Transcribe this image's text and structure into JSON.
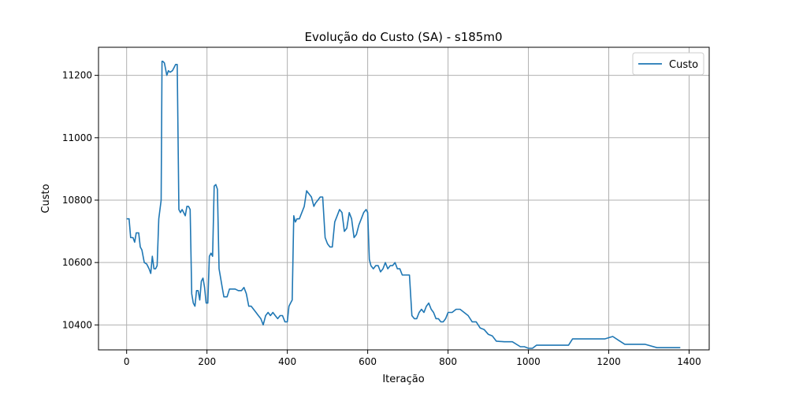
{
  "chart_data": {
    "type": "line",
    "title": "Evolução do Custo (SA) - s185m0",
    "xlabel": "Iteração",
    "ylabel": "Custo",
    "xlim": [
      -70,
      1450
    ],
    "ylim": [
      10320,
      11290
    ],
    "xticks": [
      0,
      200,
      400,
      600,
      800,
      1000,
      1200,
      1400
    ],
    "yticks": [
      10400,
      10600,
      10800,
      11000,
      11200
    ],
    "grid": true,
    "legend_position": "top-right",
    "series": [
      {
        "name": "Custo",
        "color": "#1f77b4",
        "x": [
          0,
          6,
          10,
          16,
          20,
          24,
          30,
          34,
          38,
          44,
          50,
          56,
          60,
          64,
          68,
          72,
          76,
          80,
          84,
          86,
          88,
          90,
          94,
          100,
          104,
          108,
          114,
          118,
          122,
          126,
          130,
          134,
          138,
          142,
          146,
          150,
          154,
          158,
          162,
          166,
          170,
          174,
          178,
          182,
          186,
          190,
          194,
          198,
          202,
          206,
          210,
          214,
          218,
          222,
          226,
          230,
          234,
          238,
          242,
          246,
          250,
          256,
          262,
          270,
          278,
          286,
          292,
          298,
          304,
          310,
          316,
          322,
          328,
          334,
          340,
          346,
          352,
          358,
          364,
          370,
          376,
          382,
          388,
          394,
          400,
          404,
          408,
          412,
          416,
          420,
          424,
          430,
          436,
          442,
          448,
          454,
          460,
          466,
          470,
          476,
          482,
          488,
          494,
          500,
          506,
          512,
          518,
          524,
          530,
          536,
          542,
          548,
          554,
          560,
          566,
          572,
          578,
          584,
          590,
          596,
          600,
          604,
          608,
          614,
          620,
          626,
          632,
          638,
          644,
          650,
          656,
          662,
          668,
          674,
          680,
          686,
          692,
          698,
          704,
          710,
          716,
          722,
          728,
          734,
          740,
          746,
          752,
          758,
          764,
          770,
          776,
          782,
          788,
          794,
          800,
          810,
          820,
          830,
          840,
          850,
          860,
          870,
          880,
          890,
          900,
          910,
          920,
          940,
          960,
          980,
          990,
          1000,
          1010,
          1020,
          1040,
          1060,
          1080,
          1100,
          1110,
          1130,
          1160,
          1190,
          1210,
          1225,
          1240,
          1260,
          1290,
          1320,
          1350,
          1378
        ],
        "y": [
          10740,
          10740,
          10680,
          10680,
          10665,
          10695,
          10695,
          10650,
          10640,
          10600,
          10595,
          10580,
          10565,
          10620,
          10580,
          10580,
          10590,
          10740,
          10780,
          10800,
          11245,
          11245,
          11240,
          11200,
          11215,
          11210,
          11215,
          11225,
          11235,
          11235,
          10770,
          10760,
          10770,
          10760,
          10750,
          10780,
          10780,
          10770,
          10500,
          10470,
          10460,
          10510,
          10510,
          10480,
          10540,
          10550,
          10520,
          10470,
          10470,
          10620,
          10630,
          10620,
          10845,
          10850,
          10835,
          10580,
          10550,
          10520,
          10490,
          10490,
          10490,
          10515,
          10515,
          10515,
          10510,
          10510,
          10520,
          10500,
          10460,
          10460,
          10450,
          10440,
          10430,
          10420,
          10400,
          10430,
          10440,
          10430,
          10440,
          10430,
          10420,
          10430,
          10430,
          10410,
          10410,
          10460,
          10470,
          10480,
          10750,
          10730,
          10740,
          10740,
          10760,
          10780,
          10830,
          10820,
          10810,
          10780,
          10790,
          10800,
          10810,
          10810,
          10680,
          10660,
          10650,
          10650,
          10730,
          10750,
          10770,
          10760,
          10700,
          10710,
          10760,
          10740,
          10680,
          10690,
          10720,
          10740,
          10760,
          10770,
          10760,
          10610,
          10590,
          10580,
          10590,
          10590,
          10570,
          10580,
          10600,
          10580,
          10590,
          10590,
          10600,
          10580,
          10580,
          10560,
          10560,
          10560,
          10560,
          10430,
          10420,
          10420,
          10440,
          10450,
          10440,
          10460,
          10470,
          10450,
          10440,
          10420,
          10420,
          10410,
          10410,
          10420,
          10440,
          10440,
          10450,
          10450,
          10440,
          10430,
          10410,
          10410,
          10390,
          10385,
          10370,
          10365,
          10348,
          10346,
          10346,
          10330,
          10330,
          10325,
          10325,
          10335,
          10335,
          10335,
          10335,
          10335,
          10355,
          10355,
          10355,
          10355,
          10363,
          10350,
          10338,
          10338,
          10338,
          10327,
          10327,
          10327
        ]
      }
    ]
  }
}
